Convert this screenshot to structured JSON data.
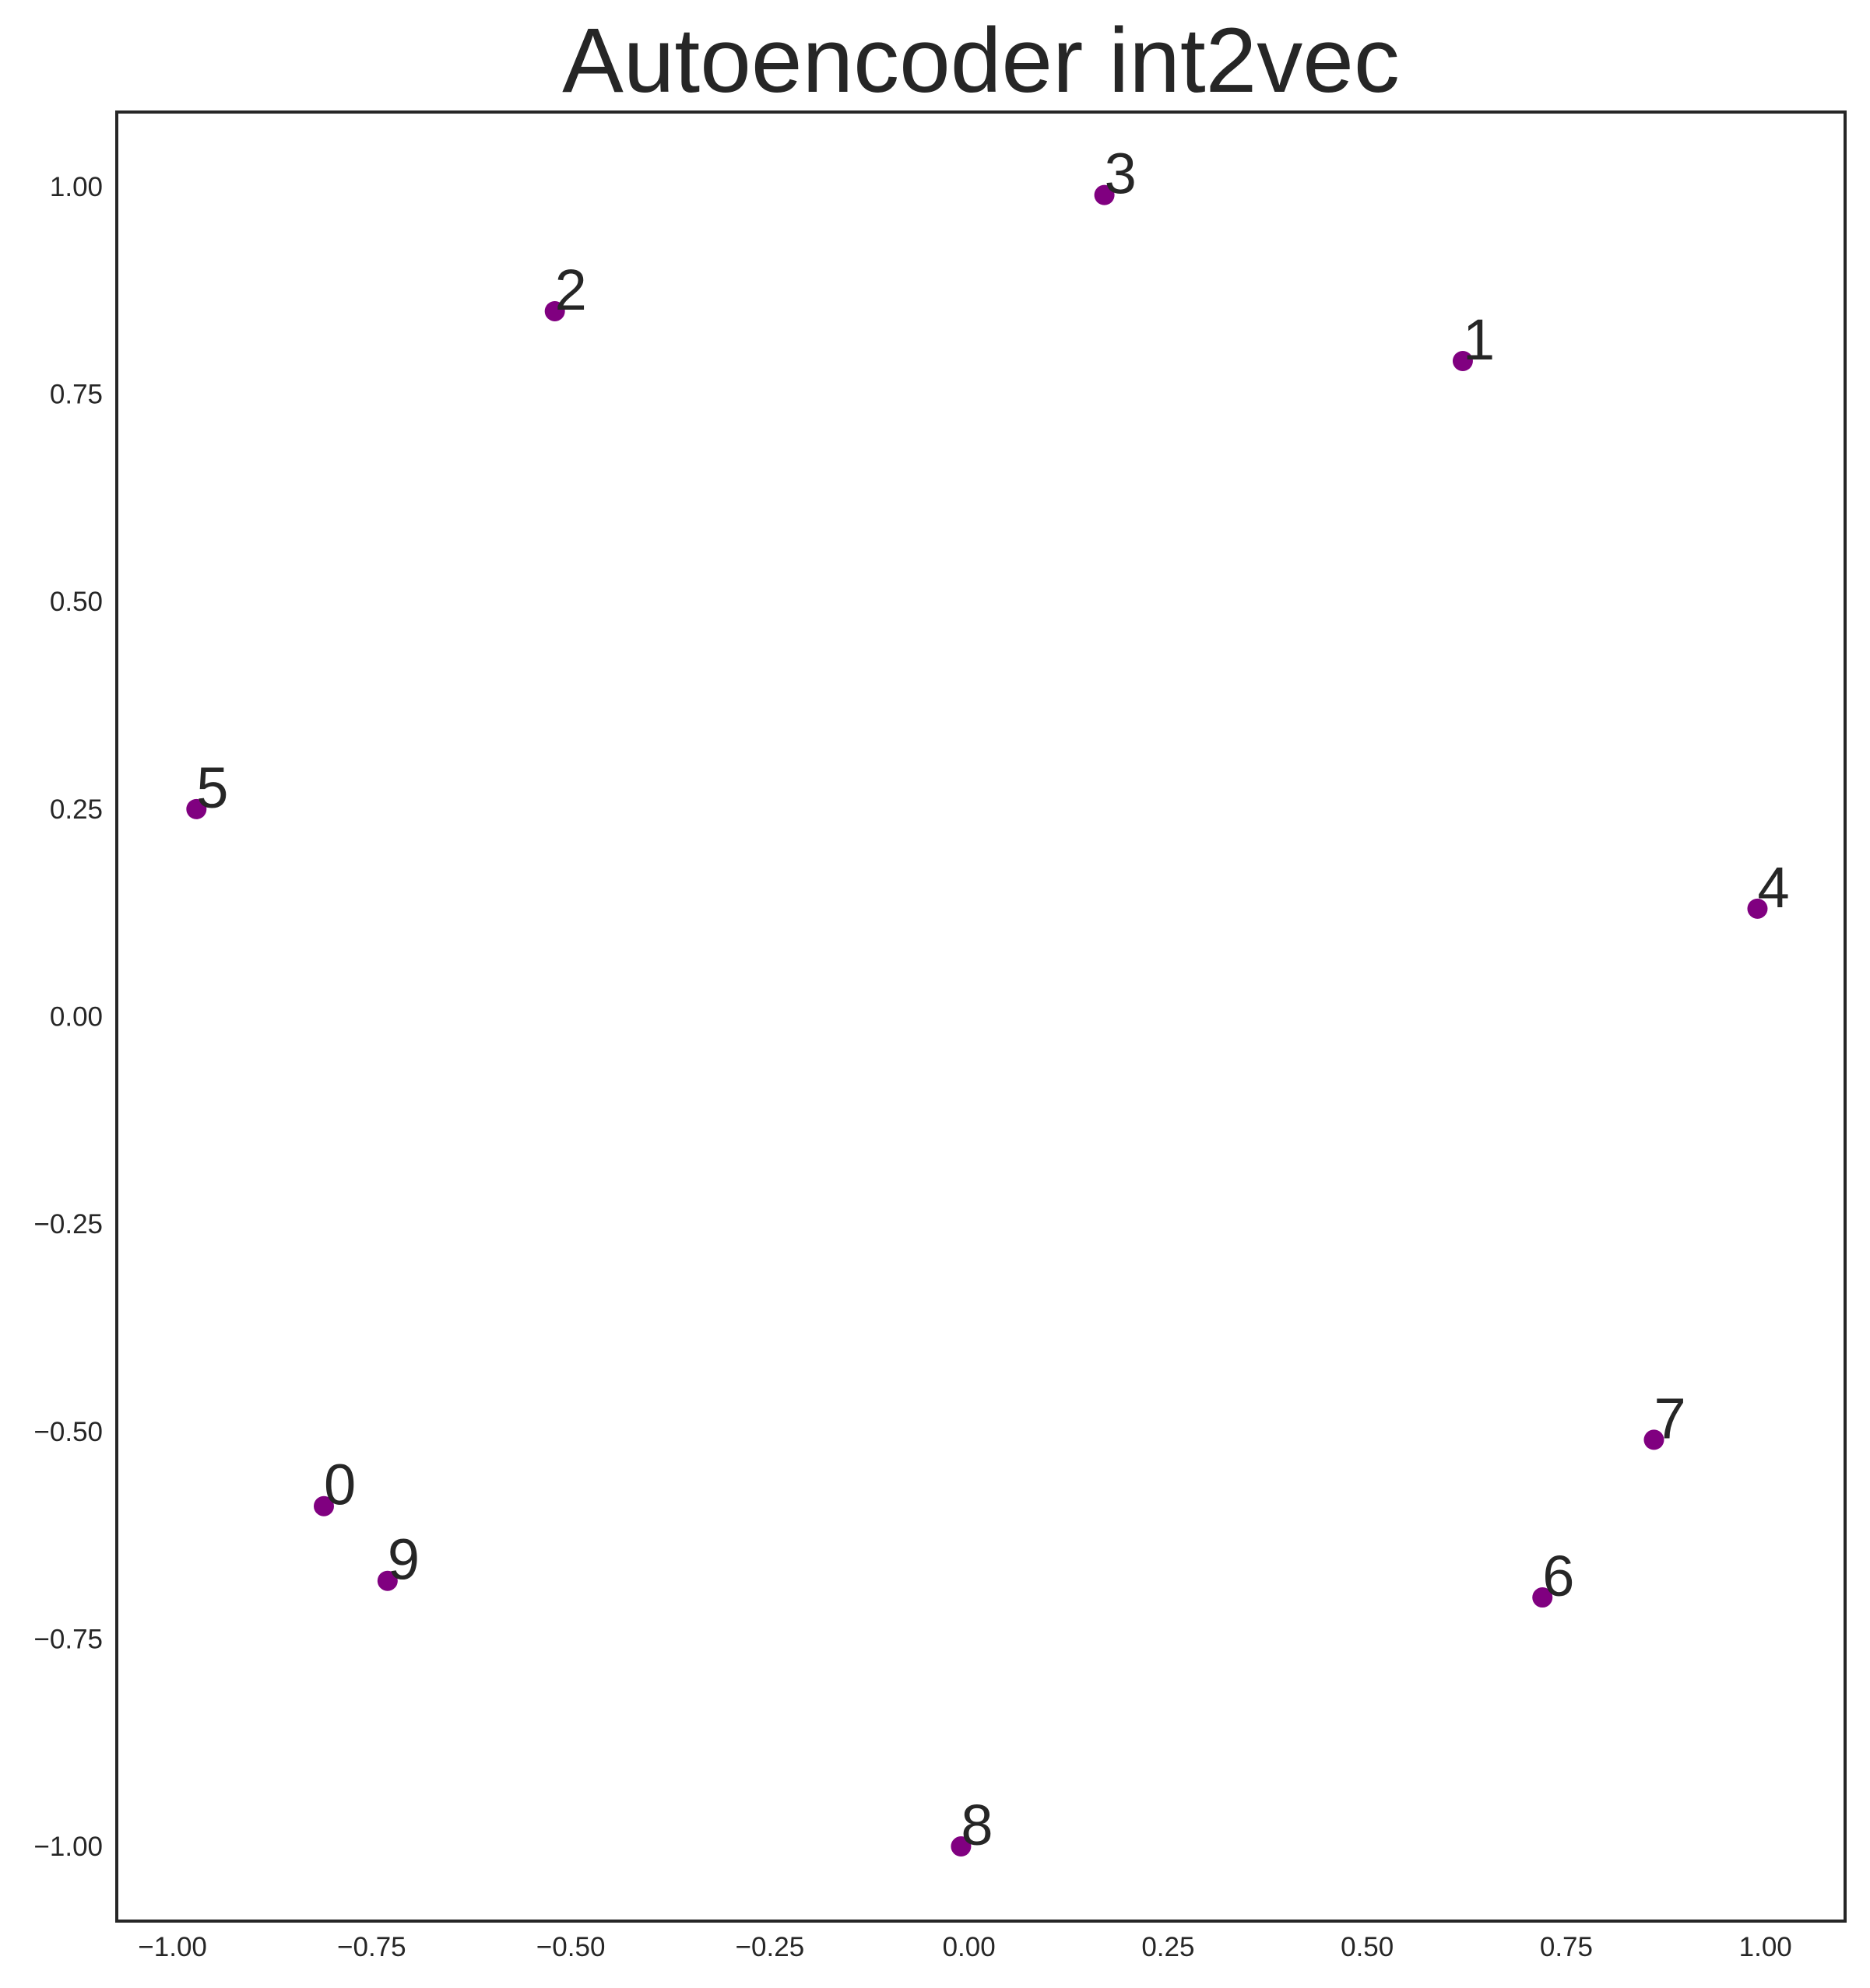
{
  "chart_data": {
    "type": "scatter",
    "title": "Autoencoder int2vec",
    "xlabel": "",
    "ylabel": "",
    "xlim": [
      -1.07,
      1.1
    ],
    "ylim": [
      -1.09,
      1.09
    ],
    "grid": false,
    "marker_color": "#800080",
    "text_color": "#262626",
    "x_ticks": [
      {
        "value": -1.0,
        "label": "−1.00"
      },
      {
        "value": -0.75,
        "label": "−0.75"
      },
      {
        "value": -0.5,
        "label": "−0.50"
      },
      {
        "value": -0.25,
        "label": "−0.25"
      },
      {
        "value": 0.0,
        "label": "0.00"
      },
      {
        "value": 0.25,
        "label": "0.25"
      },
      {
        "value": 0.5,
        "label": "0.50"
      },
      {
        "value": 0.75,
        "label": "0.75"
      },
      {
        "value": 1.0,
        "label": "1.00"
      }
    ],
    "y_ticks": [
      {
        "value": 1.0,
        "label": "1.00"
      },
      {
        "value": 0.75,
        "label": "0.75"
      },
      {
        "value": 0.5,
        "label": "0.50"
      },
      {
        "value": 0.25,
        "label": "0.25"
      },
      {
        "value": 0.0,
        "label": "0.00"
      },
      {
        "value": -0.25,
        "label": "−0.25"
      },
      {
        "value": -0.5,
        "label": "−0.50"
      },
      {
        "value": -0.75,
        "label": "−0.75"
      },
      {
        "value": -1.0,
        "label": "−1.00"
      }
    ],
    "points": [
      {
        "label": "0",
        "x": -0.81,
        "y": -0.59
      },
      {
        "label": "1",
        "x": 0.62,
        "y": 0.79
      },
      {
        "label": "2",
        "x": -0.52,
        "y": 0.85
      },
      {
        "label": "3",
        "x": 0.17,
        "y": 0.99
      },
      {
        "label": "4",
        "x": 0.99,
        "y": 0.13
      },
      {
        "label": "5",
        "x": -0.97,
        "y": 0.25
      },
      {
        "label": "6",
        "x": 0.72,
        "y": -0.7
      },
      {
        "label": "7",
        "x": 0.86,
        "y": -0.51
      },
      {
        "label": "8",
        "x": -0.01,
        "y": -1.0
      },
      {
        "label": "9",
        "x": -0.73,
        "y": -0.68
      }
    ]
  }
}
